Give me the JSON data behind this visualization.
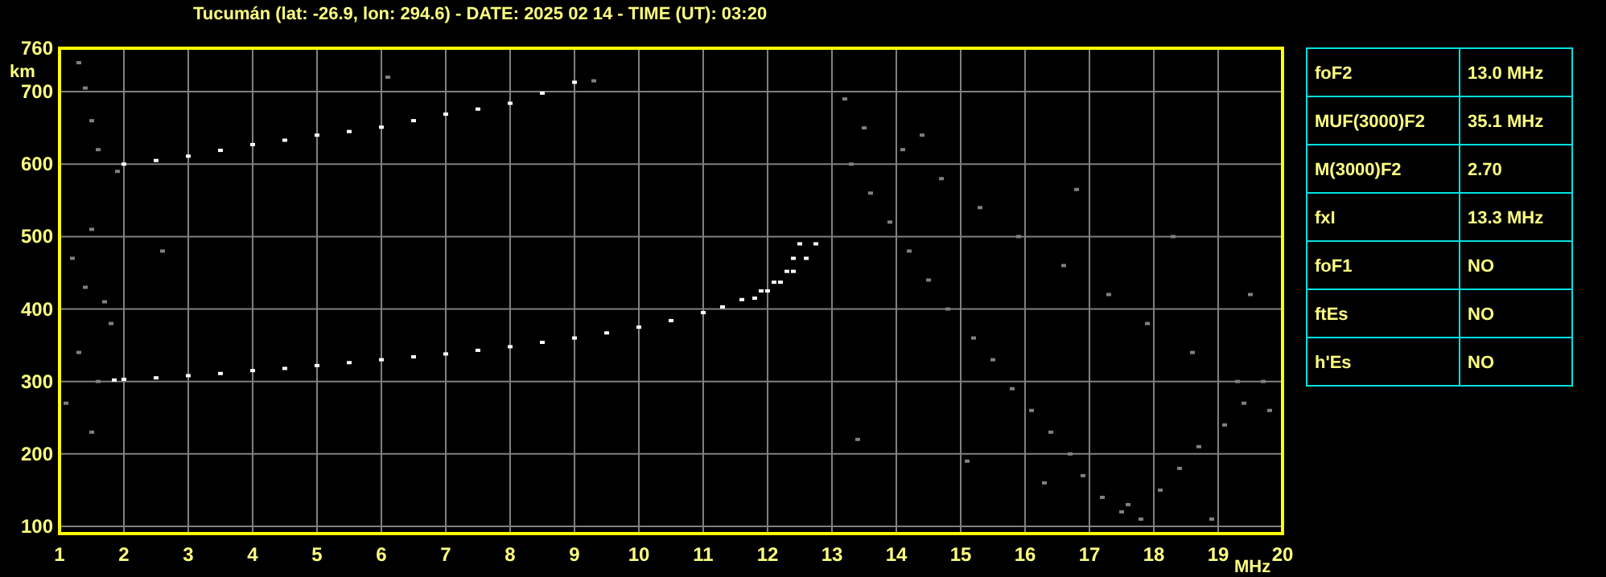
{
  "chart_data": [
    {
      "type": "scatter",
      "title": "Tucumán (lat: -26.9, lon: 294.6) - DATE: 2025 02 14 - TIME (UT): 03:20",
      "xlabel": "MHz",
      "ylabel": "km",
      "xlim": [
        1,
        20
      ],
      "ylim": [
        90,
        760
      ],
      "xticks": [
        1,
        2,
        3,
        4,
        5,
        6,
        7,
        8,
        9,
        10,
        11,
        12,
        13,
        14,
        15,
        16,
        17,
        18,
        19,
        20
      ],
      "yticks": [
        100,
        200,
        300,
        400,
        500,
        600,
        700,
        760
      ],
      "grid": true,
      "marker": "square",
      "series": [
        {
          "color": "#808080",
          "x": [
            1.3,
            1.4,
            1.5,
            1.6,
            1.9,
            1.5,
            1.2,
            1.4,
            1.7,
            1.8,
            1.3,
            1.6,
            1.1,
            1.5,
            2.6,
            6.1,
            9.3,
            13.3,
            13.6,
            13.9,
            14.2,
            14.5,
            14.8,
            15.2,
            15.5,
            15.8,
            16.1,
            16.4,
            16.7,
            16.9,
            17.2,
            17.5,
            17.8,
            18.1,
            18.4,
            18.7,
            19.1,
            19.4,
            19.7,
            13.2,
            13.5,
            14.1,
            14.7,
            15.3,
            15.9,
            16.6,
            17.3,
            17.9,
            18.6,
            19.3,
            19.8,
            13.4,
            15.1,
            16.3,
            17.6,
            18.9,
            14.4,
            16.8,
            18.3,
            19.5
          ],
          "values": [
            740,
            705,
            660,
            620,
            590,
            510,
            470,
            430,
            410,
            380,
            340,
            300,
            270,
            230,
            480,
            720,
            715,
            600,
            560,
            520,
            480,
            440,
            400,
            360,
            330,
            290,
            260,
            230,
            200,
            170,
            140,
            120,
            110,
            150,
            180,
            210,
            240,
            270,
            300,
            690,
            650,
            620,
            580,
            540,
            500,
            460,
            420,
            380,
            340,
            300,
            260,
            220,
            190,
            160,
            130,
            110,
            640,
            565,
            500,
            420
          ]
        },
        {
          "color": "#ffffff",
          "x": [
            1.85,
            2,
            2.5,
            3,
            3.5,
            4,
            4.5,
            5,
            5.5,
            6,
            6.5,
            7,
            7.5,
            8,
            8.5,
            9,
            9.5,
            10,
            10.5,
            11,
            11.3,
            11.6,
            11.9,
            12.1,
            12.3,
            12.4,
            12.5
          ],
          "values": [
            302,
            303,
            305,
            308,
            311,
            315,
            318,
            322,
            326,
            330,
            334,
            338,
            343,
            348,
            354,
            360,
            367,
            375,
            384,
            395,
            403,
            413,
            425,
            437,
            452,
            470,
            490
          ]
        },
        {
          "color": "#ffffff",
          "x": [
            11.8,
            12,
            12.2,
            12.4,
            12.6,
            12.75
          ],
          "values": [
            415,
            425,
            437,
            452,
            470,
            490
          ]
        },
        {
          "color": "#ffffff",
          "x": [
            2,
            2.5,
            3,
            3.5,
            4,
            4.5,
            5,
            5.5,
            6,
            6.5,
            7,
            7.5,
            8,
            8.5,
            9
          ],
          "values": [
            600,
            605,
            611,
            619,
            627,
            633,
            640,
            645,
            651,
            660,
            669,
            676,
            684,
            698,
            713
          ]
        }
      ]
    },
    {
      "type": "other",
      "annotations": [
        "foF2",
        "13.0 MHz",
        "MUF(3000)F2",
        "35.1 MHz",
        "M(3000)F2",
        "2.70",
        "fxI",
        "13.3 MHz",
        "foF1",
        "NO",
        "ftEs",
        "NO",
        "h'Es",
        "NO"
      ]
    }
  ]
}
